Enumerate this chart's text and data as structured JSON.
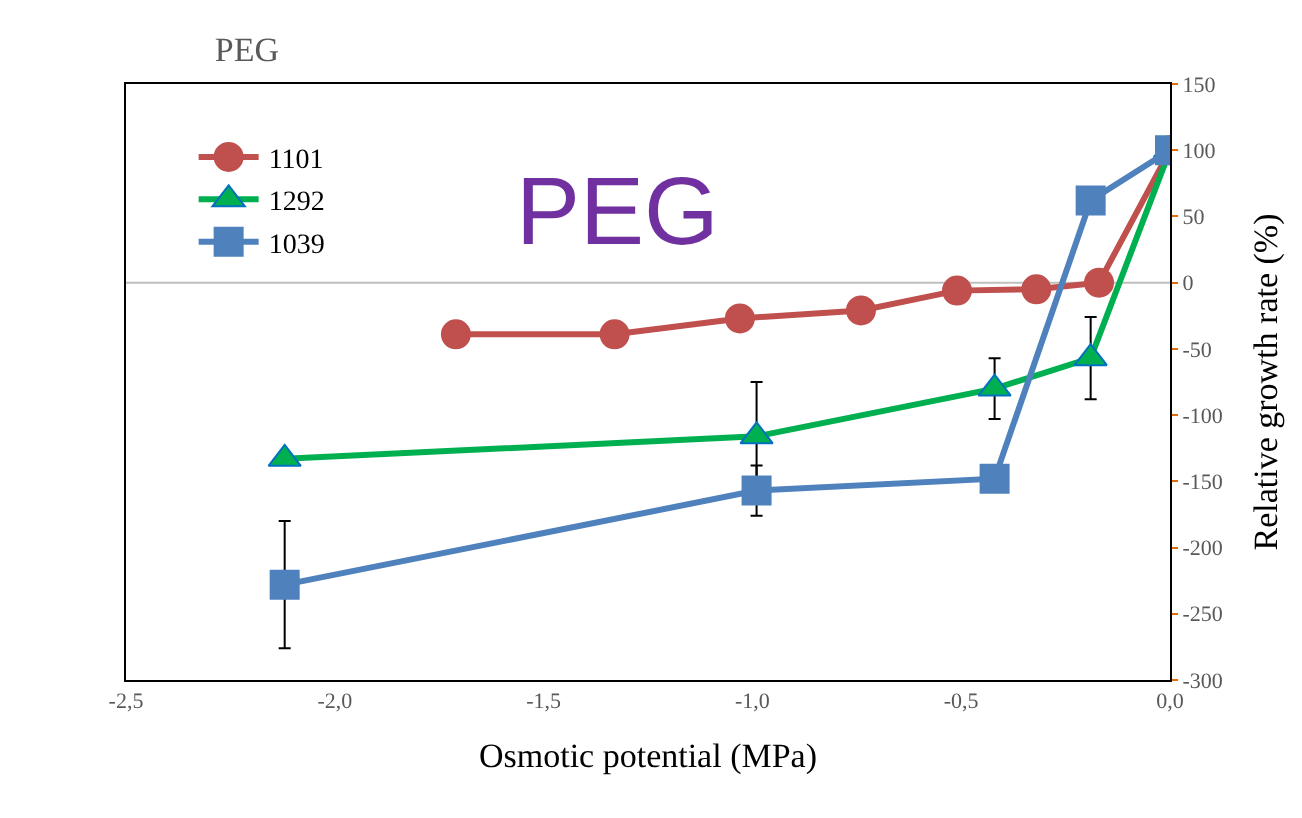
{
  "chart_data": {
    "type": "line",
    "title": "PEG",
    "xlabel": "Osmotic potential (MPa)",
    "ylabel": "Relative growth rate (%)",
    "annotations": [
      "PEG"
    ],
    "xlim": [
      -2.5,
      0.0
    ],
    "xticks": [
      {
        "value": -2.5,
        "label": "-2,5"
      },
      {
        "value": -2.0,
        "label": "-2,0"
      },
      {
        "value": -1.5,
        "label": "-1,5"
      },
      {
        "value": -1.0,
        "label": "-1,0"
      },
      {
        "value": -0.5,
        "label": "-0,5"
      },
      {
        "value": 0.0,
        "label": "0,0"
      }
    ],
    "ylim": [
      -300,
      150
    ],
    "yticks": [
      -300,
      -250,
      -200,
      -150,
      -100,
      -50,
      0,
      50,
      100,
      150
    ],
    "grid": false,
    "legend": "top left",
    "ref_lines": [
      {
        "axis": "y",
        "value": 0,
        "color": "#bfbfbf"
      }
    ],
    "series": [
      {
        "name": "1101",
        "color": "#c0504d",
        "marker": "circle",
        "x": [
          -1.71,
          -1.33,
          -1.03,
          -0.74,
          -0.51,
          -0.32,
          -0.17,
          0.0
        ],
        "values": [
          -39,
          -39,
          -27,
          -21,
          -6,
          -5,
          0,
          100
        ]
      },
      {
        "name": "1292",
        "color": "#00b050",
        "marker": "triangle",
        "x": [
          -2.12,
          -0.99,
          -0.42,
          -0.19,
          0.0
        ],
        "values": [
          -133,
          -116,
          -80,
          -57,
          100
        ],
        "errors": [
          null,
          41,
          23,
          31,
          null
        ]
      },
      {
        "name": "1039",
        "color": "#4f81bd",
        "marker": "square",
        "x": [
          -2.12,
          -0.99,
          -0.42,
          -0.19,
          0.0
        ],
        "values": [
          -228,
          -157,
          -148,
          62,
          100
        ],
        "errors": [
          48,
          19,
          null,
          null,
          null
        ]
      }
    ]
  }
}
